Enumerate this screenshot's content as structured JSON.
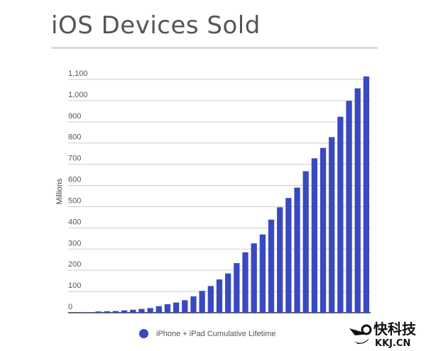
{
  "chart_data": {
    "type": "bar",
    "title": "iOS Devices Sold",
    "xlabel": "",
    "ylabel": "Millions",
    "ylim": [
      0,
      1100
    ],
    "yticks": [
      "0",
      "100",
      "200",
      "300",
      "400",
      "500",
      "600",
      "700",
      "800",
      "900",
      "1,000",
      "1,100"
    ],
    "grid": true,
    "legend_placement": "bottom",
    "series": [
      {
        "name": "iPhone + iPad Cumulative Lifetime",
        "color": "#3949c0",
        "values": [
          0.3,
          1.4,
          1,
          6,
          7,
          8,
          11,
          14,
          18,
          22,
          31,
          40,
          48,
          59,
          77,
          103,
          126,
          157,
          185,
          234,
          285,
          327,
          369,
          439,
          497,
          541,
          590,
          667,
          728,
          777,
          828,
          924,
          999,
          1058,
          1114
        ]
      }
    ]
  },
  "watermark": {
    "cn": "快科技",
    "en": "KKJ.CN"
  }
}
